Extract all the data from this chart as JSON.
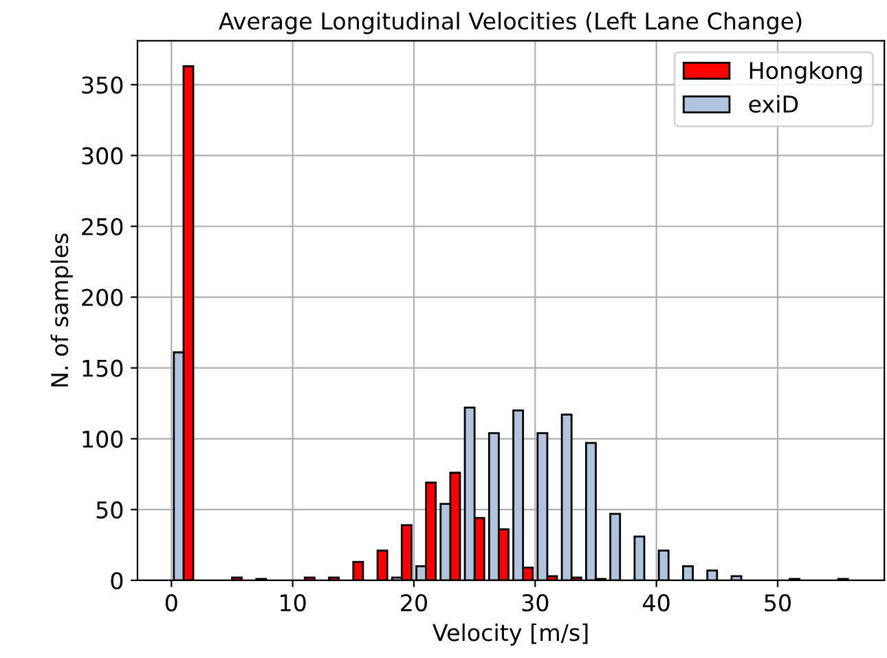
{
  "chart_data": {
    "type": "histogram",
    "title": "Average Longitudinal Velocities (Left Lane Change)",
    "xlabel": "Velocity [m/s]",
    "ylabel": "N. of samples",
    "bins": [
      0,
      2,
      4,
      6,
      8,
      10,
      12,
      14,
      16,
      18,
      20,
      22,
      24,
      26,
      28,
      30,
      32,
      34,
      36,
      38,
      40,
      42,
      44,
      46,
      48,
      50,
      52,
      54,
      56
    ],
    "series": [
      {
        "name": "Hongkong",
        "color": "#ff0000",
        "values": [
          363,
          0,
          2,
          1,
          0,
          2,
          2,
          13,
          21,
          39,
          69,
          76,
          44,
          36,
          9,
          3,
          2,
          1,
          0,
          0,
          0,
          0,
          0,
          0,
          0,
          1,
          0,
          1
        ]
      },
      {
        "name": "exiD",
        "color": "#b0c4de",
        "values": [
          161,
          0,
          0,
          0,
          0,
          0,
          0,
          0,
          0,
          2,
          10,
          54,
          122,
          104,
          120,
          104,
          117,
          97,
          47,
          31,
          21,
          10,
          7,
          3,
          0,
          0,
          0,
          0
        ]
      }
    ],
    "xlim": [
      -2.8,
      58.8
    ],
    "xticks": [
      0,
      10,
      20,
      30,
      40,
      50
    ],
    "ylim": [
      0,
      381
    ],
    "yticks": [
      0,
      50,
      100,
      150,
      200,
      250,
      300,
      350
    ],
    "grid": true,
    "legend": "top right"
  }
}
